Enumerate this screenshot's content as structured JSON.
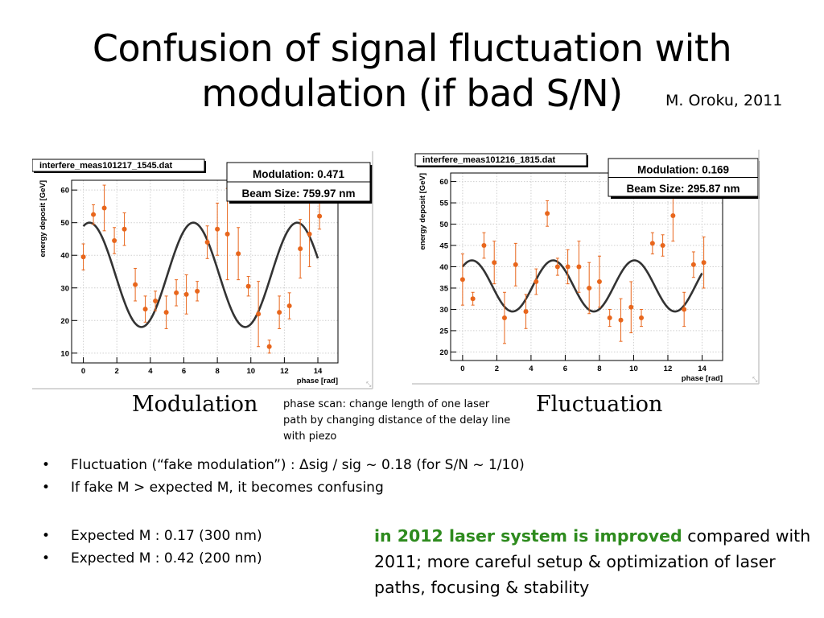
{
  "slide": {
    "title_line1": "Confusion of signal fluctuation with",
    "title_line2": "modulation (if bad S/N)",
    "credit": "M. Oroku, 2011",
    "caption_left": "Modulation",
    "caption_right": "Fluctuation",
    "note": "phase scan: change length of one laser path by changing distance of the delay line with piezo",
    "bullets_top": [
      "Fluctuation (“fake modulation”) : Δsig / sig ~ 0.18  (for S/N ~ 1/10)",
      "If fake M > expected M, it becomes confusing"
    ],
    "bullets_bottom": [
      "Expected M : 0.17 (300 nm)",
      "Expected M : 0.42 (200 nm)"
    ],
    "improve_highlight": "in 2012 laser system is improved",
    "improve_rest": " compared with 2011; more careful setup & optimization of  laser paths, focusing & stability",
    "highlight_color": "#2e8b1e"
  },
  "chart_data": [
    {
      "type": "scatter",
      "title": "interfere_meas101217_1545.dat",
      "stats": [
        "Modulation: 0.471",
        "Beam Size: 759.97 nm"
      ],
      "xlabel": "phase [rad]",
      "ylabel": "energy deposit [GeV]",
      "xlim": [
        -0.7,
        15.2
      ],
      "ylim": [
        7,
        63
      ],
      "xticks": [
        0,
        2,
        4,
        6,
        8,
        10,
        12,
        14
      ],
      "yticks": [
        10,
        20,
        30,
        40,
        50,
        60
      ],
      "marker_color": "#e8661c",
      "fit_color": "#333333",
      "fit": {
        "offset": 34,
        "amplitude": 16,
        "period": 6.2,
        "phase": 1.2,
        "x_range": [
          0,
          14
        ]
      },
      "points": [
        {
          "x": 0.0,
          "y": 39.5,
          "err": 4
        },
        {
          "x": 0.6,
          "y": 52.5,
          "err": 3
        },
        {
          "x": 1.25,
          "y": 54.5,
          "err": 7
        },
        {
          "x": 1.85,
          "y": 44.5,
          "err": 4
        },
        {
          "x": 2.45,
          "y": 48.0,
          "err": 5
        },
        {
          "x": 3.1,
          "y": 31.0,
          "err": 5
        },
        {
          "x": 3.7,
          "y": 23.5,
          "err": 4
        },
        {
          "x": 4.3,
          "y": 26.0,
          "err": 3
        },
        {
          "x": 4.95,
          "y": 22.5,
          "err": 5
        },
        {
          "x": 5.55,
          "y": 28.5,
          "err": 4
        },
        {
          "x": 6.15,
          "y": 28.0,
          "err": 6
        },
        {
          "x": 6.8,
          "y": 29.0,
          "err": 3
        },
        {
          "x": 7.4,
          "y": 44.0,
          "err": 5
        },
        {
          "x": 8.0,
          "y": 48.0,
          "err": 8
        },
        {
          "x": 8.6,
          "y": 46.5,
          "err": 14
        },
        {
          "x": 9.25,
          "y": 40.5,
          "err": 8
        },
        {
          "x": 9.85,
          "y": 30.5,
          "err": 3
        },
        {
          "x": 10.45,
          "y": 22.0,
          "err": 10
        },
        {
          "x": 11.1,
          "y": 12.0,
          "err": 2
        },
        {
          "x": 11.7,
          "y": 22.5,
          "err": 5
        },
        {
          "x": 12.3,
          "y": 24.5,
          "err": 4
        },
        {
          "x": 12.95,
          "y": 42.0,
          "err": 9
        },
        {
          "x": 13.5,
          "y": 46.5,
          "err": 10
        },
        {
          "x": 14.1,
          "y": 52.0,
          "err": 4
        }
      ]
    },
    {
      "type": "scatter",
      "title": "interfere_meas101216_1815.dat",
      "stats": [
        "Modulation: 0.169",
        "Beam Size: 295.87 nm"
      ],
      "xlabel": "phase [rad]",
      "ylabel": "energy deposit [GeV]",
      "xlim": [
        -0.7,
        15.2
      ],
      "ylim": [
        18,
        62
      ],
      "xticks": [
        0,
        2,
        4,
        6,
        8,
        10,
        12,
        14
      ],
      "yticks": [
        20,
        25,
        30,
        35,
        40,
        45,
        50,
        55,
        60
      ],
      "marker_color": "#e8661c",
      "fit_color": "#333333",
      "fit": {
        "offset": 35.5,
        "amplitude": 6,
        "period": 4.75,
        "phase": 0.85,
        "x_range": [
          0,
          14
        ]
      },
      "points": [
        {
          "x": 0.0,
          "y": 37.0,
          "err": 6
        },
        {
          "x": 0.6,
          "y": 32.5,
          "err": 1.5
        },
        {
          "x": 1.25,
          "y": 45.0,
          "err": 3
        },
        {
          "x": 1.85,
          "y": 41.0,
          "err": 5
        },
        {
          "x": 2.45,
          "y": 28.0,
          "err": 6
        },
        {
          "x": 3.1,
          "y": 40.5,
          "err": 5
        },
        {
          "x": 3.7,
          "y": 29.5,
          "err": 4
        },
        {
          "x": 4.3,
          "y": 36.5,
          "err": 3
        },
        {
          "x": 4.95,
          "y": 52.5,
          "err": 3
        },
        {
          "x": 5.55,
          "y": 40.0,
          "err": 2
        },
        {
          "x": 6.15,
          "y": 40.0,
          "err": 4
        },
        {
          "x": 6.8,
          "y": 40.0,
          "err": 6
        },
        {
          "x": 7.4,
          "y": 35.0,
          "err": 6
        },
        {
          "x": 8.0,
          "y": 36.5,
          "err": 6
        },
        {
          "x": 8.6,
          "y": 28.0,
          "err": 2
        },
        {
          "x": 9.25,
          "y": 27.5,
          "err": 5
        },
        {
          "x": 9.85,
          "y": 30.5,
          "err": 6
        },
        {
          "x": 10.45,
          "y": 28.0,
          "err": 2
        },
        {
          "x": 11.1,
          "y": 45.5,
          "err": 2.5
        },
        {
          "x": 11.7,
          "y": 45.0,
          "err": 2.5
        },
        {
          "x": 12.3,
          "y": 52.0,
          "err": 6
        },
        {
          "x": 12.95,
          "y": 30.0,
          "err": 4
        },
        {
          "x": 13.5,
          "y": 40.5,
          "err": 3
        },
        {
          "x": 14.1,
          "y": 41.0,
          "err": 6
        }
      ]
    }
  ]
}
